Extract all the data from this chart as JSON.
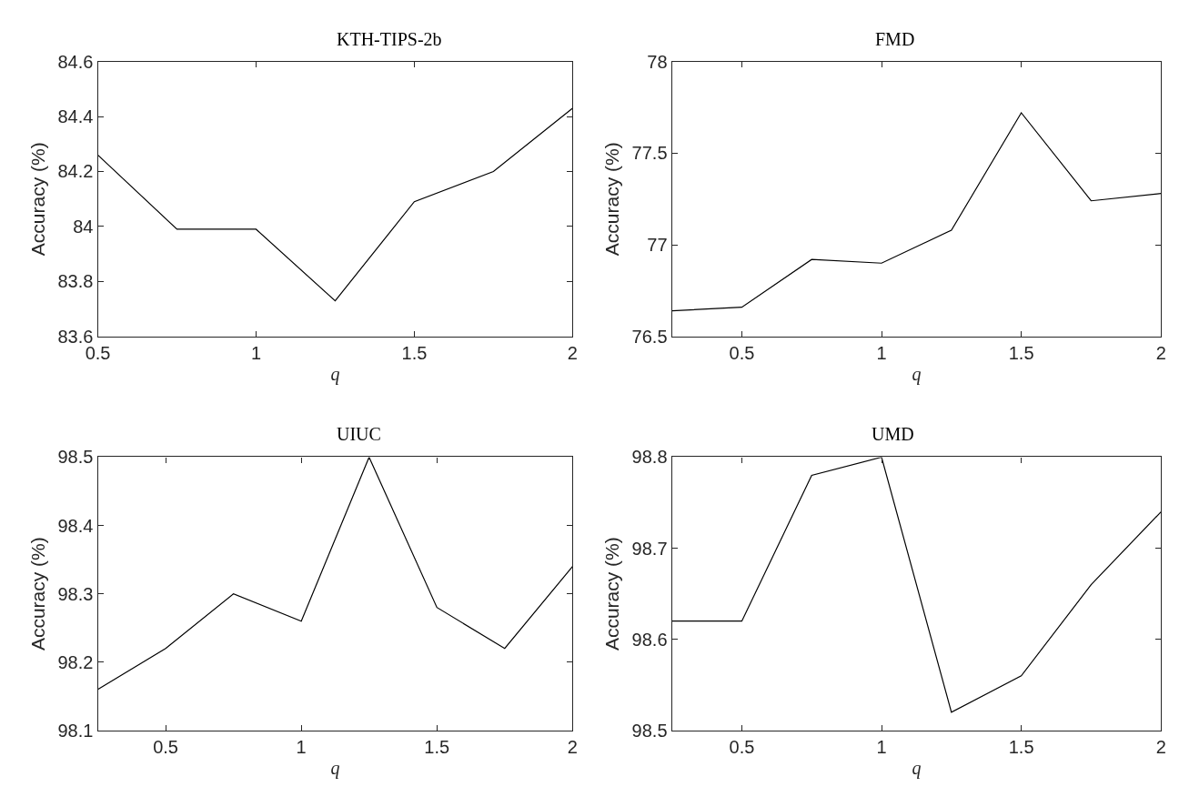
{
  "chart_data": [
    {
      "type": "line",
      "title": "KTH-TIPS-2b",
      "xlabel": "q",
      "ylabel": "Accuracy (%)",
      "x": [
        0.5,
        0.75,
        1,
        1.25,
        1.5,
        1.75,
        2
      ],
      "series": [
        {
          "color": "#000000",
          "values": [
            84.26,
            83.99,
            83.99,
            83.73,
            84.09,
            84.2,
            84.43
          ]
        }
      ],
      "xlim": [
        0.5,
        2
      ],
      "xticks": [
        0.5,
        1,
        1.5,
        2
      ],
      "ylim": [
        83.6,
        84.6
      ],
      "yticks": [
        83.6,
        83.8,
        {
          "value": 84,
          "label": "84"
        },
        84.2,
        84.4,
        84.6
      ]
    },
    {
      "type": "line",
      "title": "FMD",
      "xlabel": "q",
      "ylabel": "Accuracy (%)",
      "x": [
        0.25,
        0.5,
        0.75,
        1,
        1.25,
        1.5,
        1.75,
        2
      ],
      "series": [
        {
          "color": "#000000",
          "values": [
            76.64,
            76.66,
            76.92,
            76.9,
            77.08,
            77.72,
            77.24,
            77.28
          ]
        }
      ],
      "xlim": [
        0.25,
        2
      ],
      "xticks": [
        0.5,
        1,
        1.5,
        2
      ],
      "ylim": [
        76.5,
        78
      ],
      "yticks": [
        76.5,
        77,
        77.5,
        78
      ]
    },
    {
      "type": "line",
      "title": "UIUC",
      "xlabel": "q",
      "ylabel": "Accuracy (%)",
      "x": [
        0.25,
        0.5,
        0.75,
        1,
        1.25,
        1.5,
        1.75,
        2
      ],
      "series": [
        {
          "color": "#000000",
          "values": [
            98.16,
            98.22,
            98.3,
            98.26,
            98.5,
            98.28,
            98.22,
            98.34
          ]
        }
      ],
      "xlim": [
        0.25,
        2
      ],
      "xticks": [
        0.5,
        1,
        1.5,
        2
      ],
      "ylim": [
        98.1,
        98.5
      ],
      "yticks": [
        98.1,
        98.2,
        98.3,
        98.4,
        98.5
      ]
    },
    {
      "type": "line",
      "title": "UMD",
      "xlabel": "q",
      "ylabel": "Accuracy (%)",
      "x": [
        0.25,
        0.5,
        0.75,
        1,
        1.25,
        1.5,
        1.75,
        2
      ],
      "series": [
        {
          "color": "#000000",
          "values": [
            98.62,
            98.62,
            98.78,
            98.8,
            98.52,
            98.56,
            98.66,
            98.74
          ]
        }
      ],
      "xlim": [
        0.25,
        2
      ],
      "xticks": [
        0.5,
        1,
        1.5,
        2
      ],
      "ylim": [
        98.5,
        98.8
      ],
      "yticks": [
        98.5,
        98.6,
        98.7,
        98.8
      ]
    }
  ]
}
